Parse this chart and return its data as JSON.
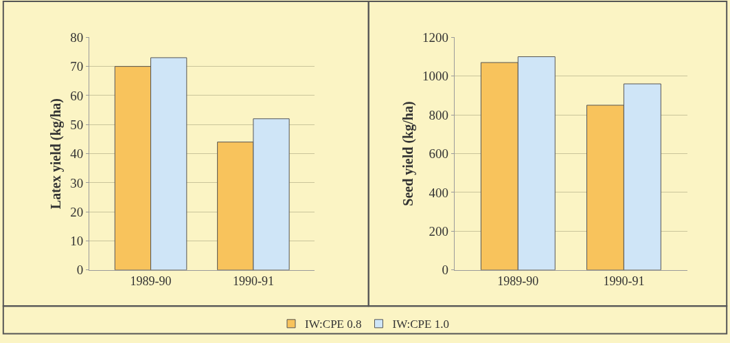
{
  "chart_data": [
    {
      "type": "bar",
      "ylabel": "Latex yield (kg/ha)",
      "categories": [
        "1989-90",
        "1990-91"
      ],
      "series": [
        {
          "name": "IW:CPE 0.8",
          "color": "#f8c35c",
          "values": [
            70,
            44
          ]
        },
        {
          "name": "IW:CPE 1.0",
          "color": "#cfe5f7",
          "values": [
            73,
            52
          ]
        }
      ],
      "ylim": [
        0,
        80
      ],
      "yticks": [
        0,
        10,
        20,
        30,
        40,
        50,
        60,
        70,
        80
      ],
      "grid": "y",
      "legend": "bottom"
    },
    {
      "type": "bar",
      "ylabel": "Seed yield (kg/ha)",
      "categories": [
        "1989-90",
        "1990-91"
      ],
      "series": [
        {
          "color": "#f8c35c",
          "values": [
            1070,
            850
          ]
        },
        {
          "color": "#cfe5f7",
          "values": [
            1100,
            960
          ]
        }
      ],
      "ylim": [
        0,
        1200
      ],
      "yticks": [
        0,
        200,
        400,
        600,
        800,
        1000,
        1200
      ],
      "grid": "y"
    }
  ]
}
